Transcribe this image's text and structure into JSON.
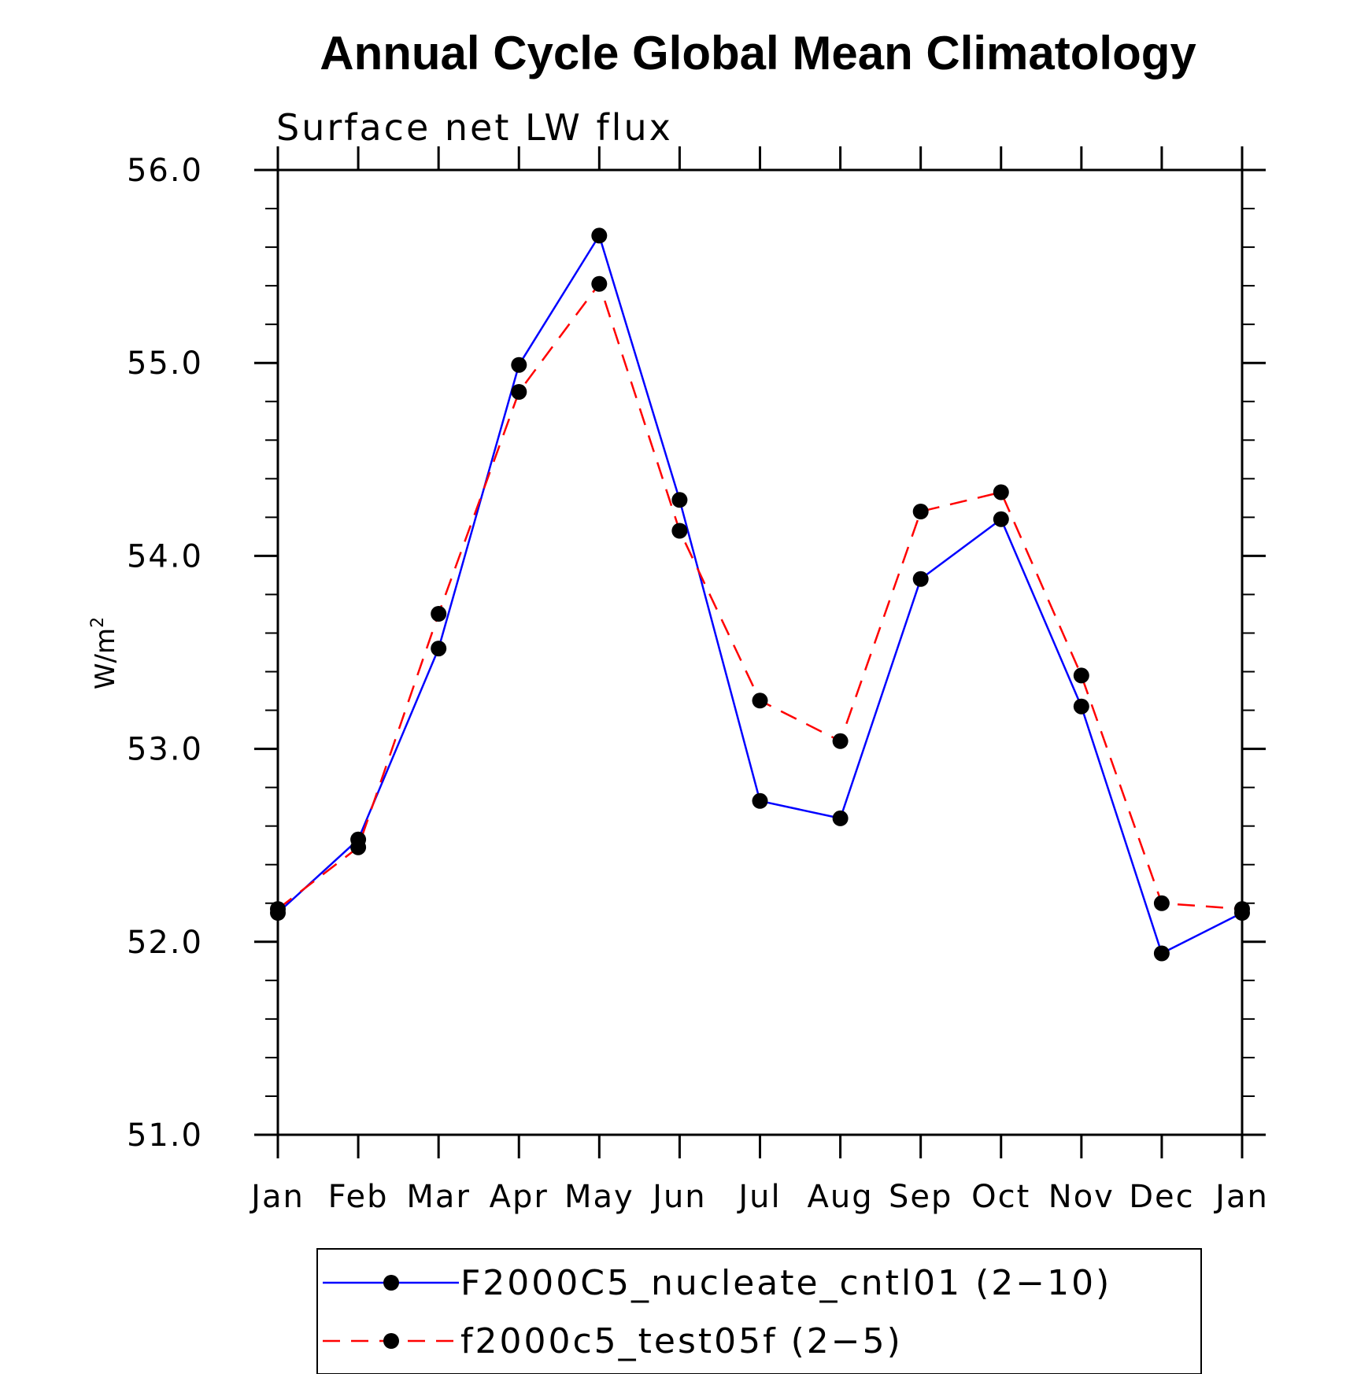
{
  "chart_data": {
    "type": "line",
    "title": "Annual Cycle Global Mean Climatology",
    "subtitle": "Surface net LW flux",
    "ylabel": "W/m",
    "ylabel_superscript": "2",
    "xlabel": "",
    "categories": [
      "Jan",
      "Feb",
      "Mar",
      "Apr",
      "May",
      "Jun",
      "Jul",
      "Aug",
      "Sep",
      "Oct",
      "Nov",
      "Dec",
      "Jan"
    ],
    "ylim": [
      51.0,
      56.0
    ],
    "yticks": [
      "51.0",
      "52.0",
      "53.0",
      "54.0",
      "55.0",
      "56.0"
    ],
    "grid": false,
    "legend_position": "bottom",
    "series": [
      {
        "name": "F2000C5_nucleate_cntl01 (2−10)",
        "color": "#0000ff",
        "dash": "solid",
        "values": [
          52.15,
          52.53,
          53.52,
          54.99,
          55.66,
          54.29,
          52.73,
          52.64,
          53.88,
          54.19,
          53.22,
          51.94,
          52.15
        ]
      },
      {
        "name": "f2000c5_test05f (2−5)",
        "color": "#ff0000",
        "dash": "dashed",
        "values": [
          52.17,
          52.49,
          53.7,
          54.85,
          55.41,
          54.13,
          53.25,
          53.04,
          54.23,
          54.33,
          53.38,
          52.2,
          52.17
        ]
      }
    ]
  }
}
